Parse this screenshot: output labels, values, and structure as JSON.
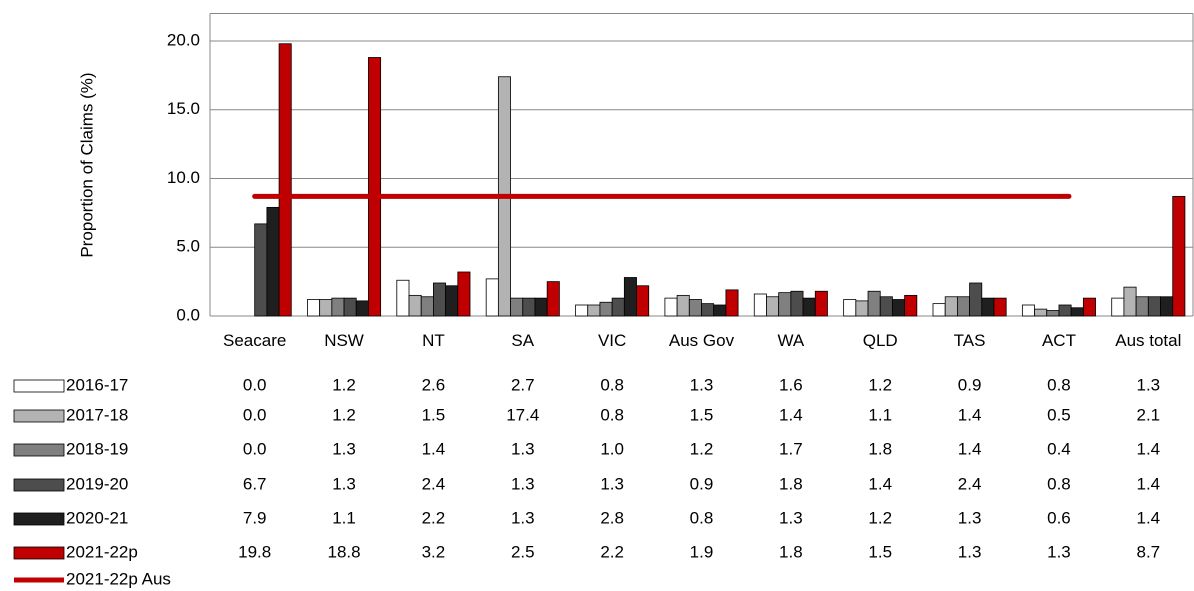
{
  "chart_data": {
    "type": "bar",
    "y_label": "Proportion of Claims (%)",
    "categories": [
      "Seacare",
      "NSW",
      "NT",
      "SA",
      "VIC",
      "Aus Gov",
      "WA",
      "QLD",
      "TAS",
      "ACT",
      "Aus total"
    ],
    "series": [
      {
        "name": "2016-17",
        "color": "#ffffff",
        "values": [
          0,
          1.2,
          2.6,
          2.7,
          0.8,
          1.3,
          1.6,
          1.2,
          0.9,
          0.8,
          1.3
        ],
        "value_labels": [
          "0.0",
          "1.2",
          "2.6",
          "2.7",
          "0.8",
          "1.3",
          "1.6",
          "1.2",
          "0.9",
          "0.8",
          "1.3"
        ]
      },
      {
        "name": "2017-18",
        "color": "#b3b3b3",
        "values": [
          0,
          1.2,
          1.5,
          17.4,
          0.8,
          1.5,
          1.4,
          1.1,
          1.4,
          0.5,
          2.1
        ],
        "value_labels": [
          "0.0",
          "1.2",
          "1.5",
          "17.4",
          "0.8",
          "1.5",
          "1.4",
          "1.1",
          "1.4",
          "0.5",
          "2.1"
        ]
      },
      {
        "name": "2018-19",
        "color": "#808080",
        "values": [
          0,
          1.3,
          1.4,
          1.3,
          1,
          1.2,
          1.7,
          1.8,
          1.4,
          0.4,
          1.4
        ],
        "value_labels": [
          "0.0",
          "1.3",
          "1.4",
          "1.3",
          "1.0",
          "1.2",
          "1.7",
          "1.8",
          "1.4",
          "0.4",
          "1.4"
        ]
      },
      {
        "name": "2019-20",
        "color": "#4d4d4d",
        "values": [
          6.7,
          1.3,
          2.4,
          1.3,
          1.3,
          0.9,
          1.8,
          1.4,
          2.4,
          0.8,
          1.4
        ],
        "value_labels": [
          "6.7",
          "1.3",
          "2.4",
          "1.3",
          "1.3",
          "0.9",
          "1.8",
          "1.4",
          "2.4",
          "0.8",
          "1.4"
        ]
      },
      {
        "name": "2020-21",
        "color": "#1f1f1f",
        "values": [
          7.9,
          1.1,
          2.2,
          1.3,
          2.8,
          0.8,
          1.3,
          1.2,
          1.3,
          0.6,
          1.4
        ],
        "value_labels": [
          "7.9",
          "1.1",
          "2.2",
          "1.3",
          "2.8",
          "0.8",
          "1.3",
          "1.2",
          "1.3",
          "0.6",
          "1.4"
        ]
      },
      {
        "name": "2021-22p",
        "color": "#c00000",
        "values": [
          19.8,
          18.8,
          3.2,
          2.5,
          2.2,
          1.9,
          1.8,
          1.5,
          1.3,
          1.3,
          8.7
        ],
        "value_labels": [
          "19.8",
          "18.8",
          "3.2",
          "2.5",
          "2.2",
          "1.9",
          "1.8",
          "1.5",
          "1.3",
          "1.3",
          "8.7"
        ]
      }
    ],
    "reference_line": {
      "name": "2021-22p Aus",
      "value": 8.7,
      "color": "#c00000"
    },
    "ylim": [
      0,
      22
    ],
    "yticks": [
      {
        "value": 0,
        "label": "0.0"
      },
      {
        "value": 5,
        "label": "5.0"
      },
      {
        "value": 10,
        "label": "10.0"
      },
      {
        "value": 15,
        "label": "15.0"
      },
      {
        "value": 20,
        "label": "20.0"
      }
    ],
    "grid": true
  }
}
